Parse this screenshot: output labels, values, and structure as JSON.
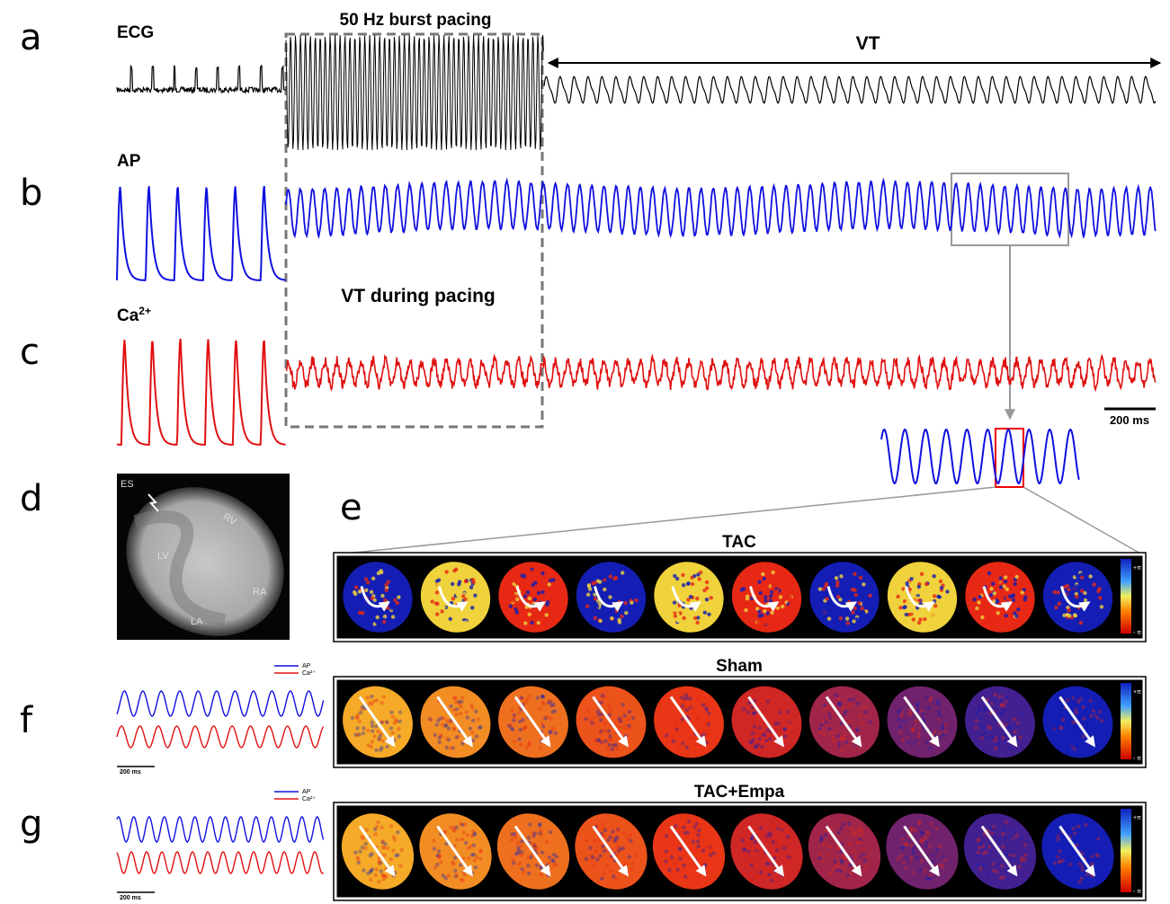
{
  "panel_labels": [
    "a",
    "b",
    "c",
    "d",
    "e",
    "f",
    "g"
  ],
  "panel_a": {
    "trace_label": "ECG",
    "pacing_label": "50 Hz burst pacing",
    "vt_label": "VT"
  },
  "panel_b": {
    "trace_label": "AP",
    "pacing_label": "VT during pacing"
  },
  "panel_c": {
    "trace_label": "Ca",
    "trace_label_sup": "2+",
    "scale_bar": "200 ms"
  },
  "panel_d": {
    "labels": [
      "ES",
      "RV",
      "LV",
      "RA",
      "LA"
    ]
  },
  "maps": [
    {
      "title": "TAC"
    },
    {
      "title": "Sham"
    },
    {
      "title": "TAC+Empa"
    }
  ],
  "colorbar": {
    "top": "+π",
    "bottom": "- π"
  },
  "small_traces": {
    "legend": [
      "AP",
      "Ca²⁺"
    ],
    "scale_bar": "200 ms"
  }
}
